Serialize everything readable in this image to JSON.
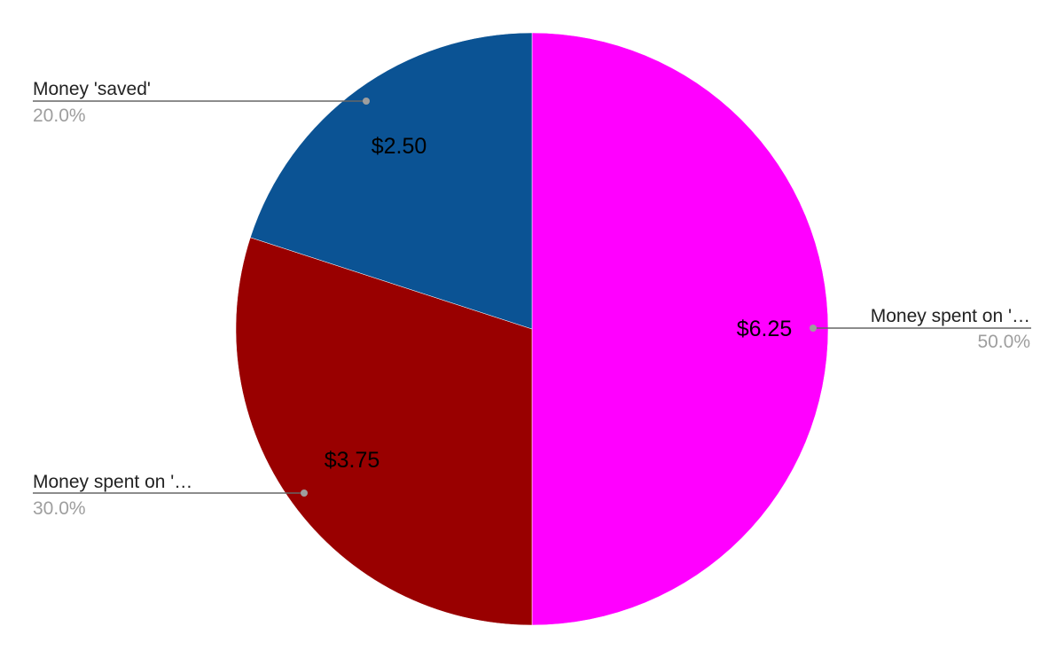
{
  "chart_data": {
    "type": "pie",
    "title": "",
    "slices": [
      {
        "name": "Money spent on '...",
        "display_name": "Money spent on '…",
        "value": 6.25,
        "value_label": "$6.25",
        "percent_label": "50.0%",
        "color": "#ff00ff"
      },
      {
        "name": "Money spent on '...",
        "display_name": "Money spent on '…",
        "value": 3.75,
        "value_label": "$3.75",
        "percent_label": "30.0%",
        "color": "#990000"
      },
      {
        "name": "Money 'saved'",
        "display_name": "Money 'saved'",
        "value": 2.5,
        "value_label": "$2.50",
        "percent_label": "20.0%",
        "color": "#0b5394"
      }
    ],
    "start_angle_deg": 0,
    "direction": "clockwise",
    "legend": "callout-labels",
    "leader_line_color": "#666666",
    "leader_dot_color": "#9e9e9e"
  }
}
